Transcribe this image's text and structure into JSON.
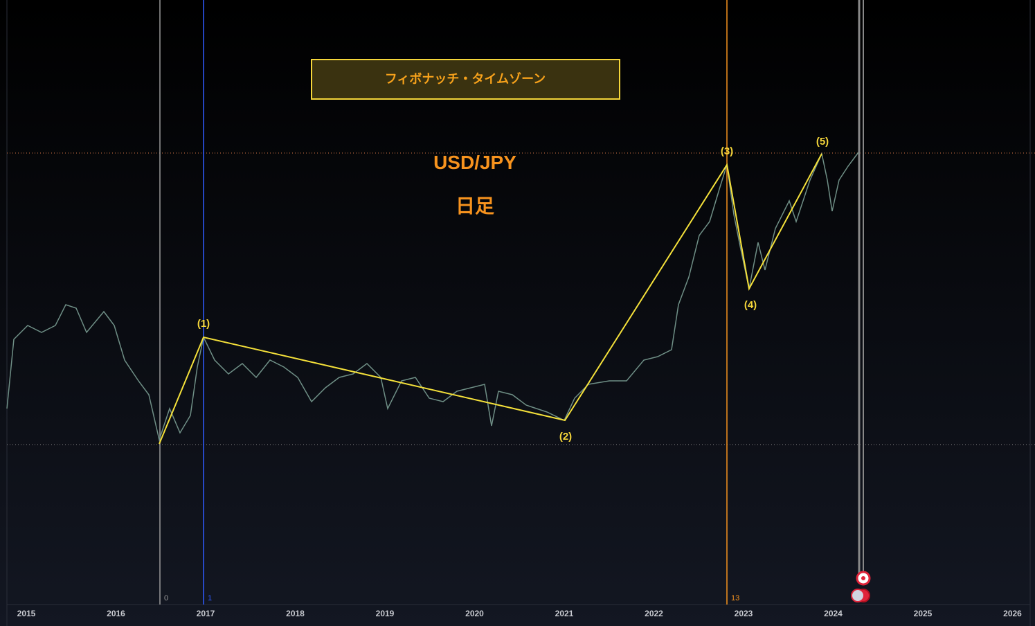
{
  "header": {
    "title": "フィボナッチ・タイムゾーン",
    "symbol": "USD/JPY",
    "timeframe": "日足"
  },
  "waves": [
    "(1)",
    "(2)",
    "(3)",
    "(4)",
    "(5)"
  ],
  "fib_zones": [
    "0",
    "1",
    "13"
  ],
  "x_axis": [
    "2015",
    "2016",
    "2017",
    "2018",
    "2019",
    "2020",
    "2021",
    "2022",
    "2023",
    "2024",
    "2025",
    "2026"
  ]
}
